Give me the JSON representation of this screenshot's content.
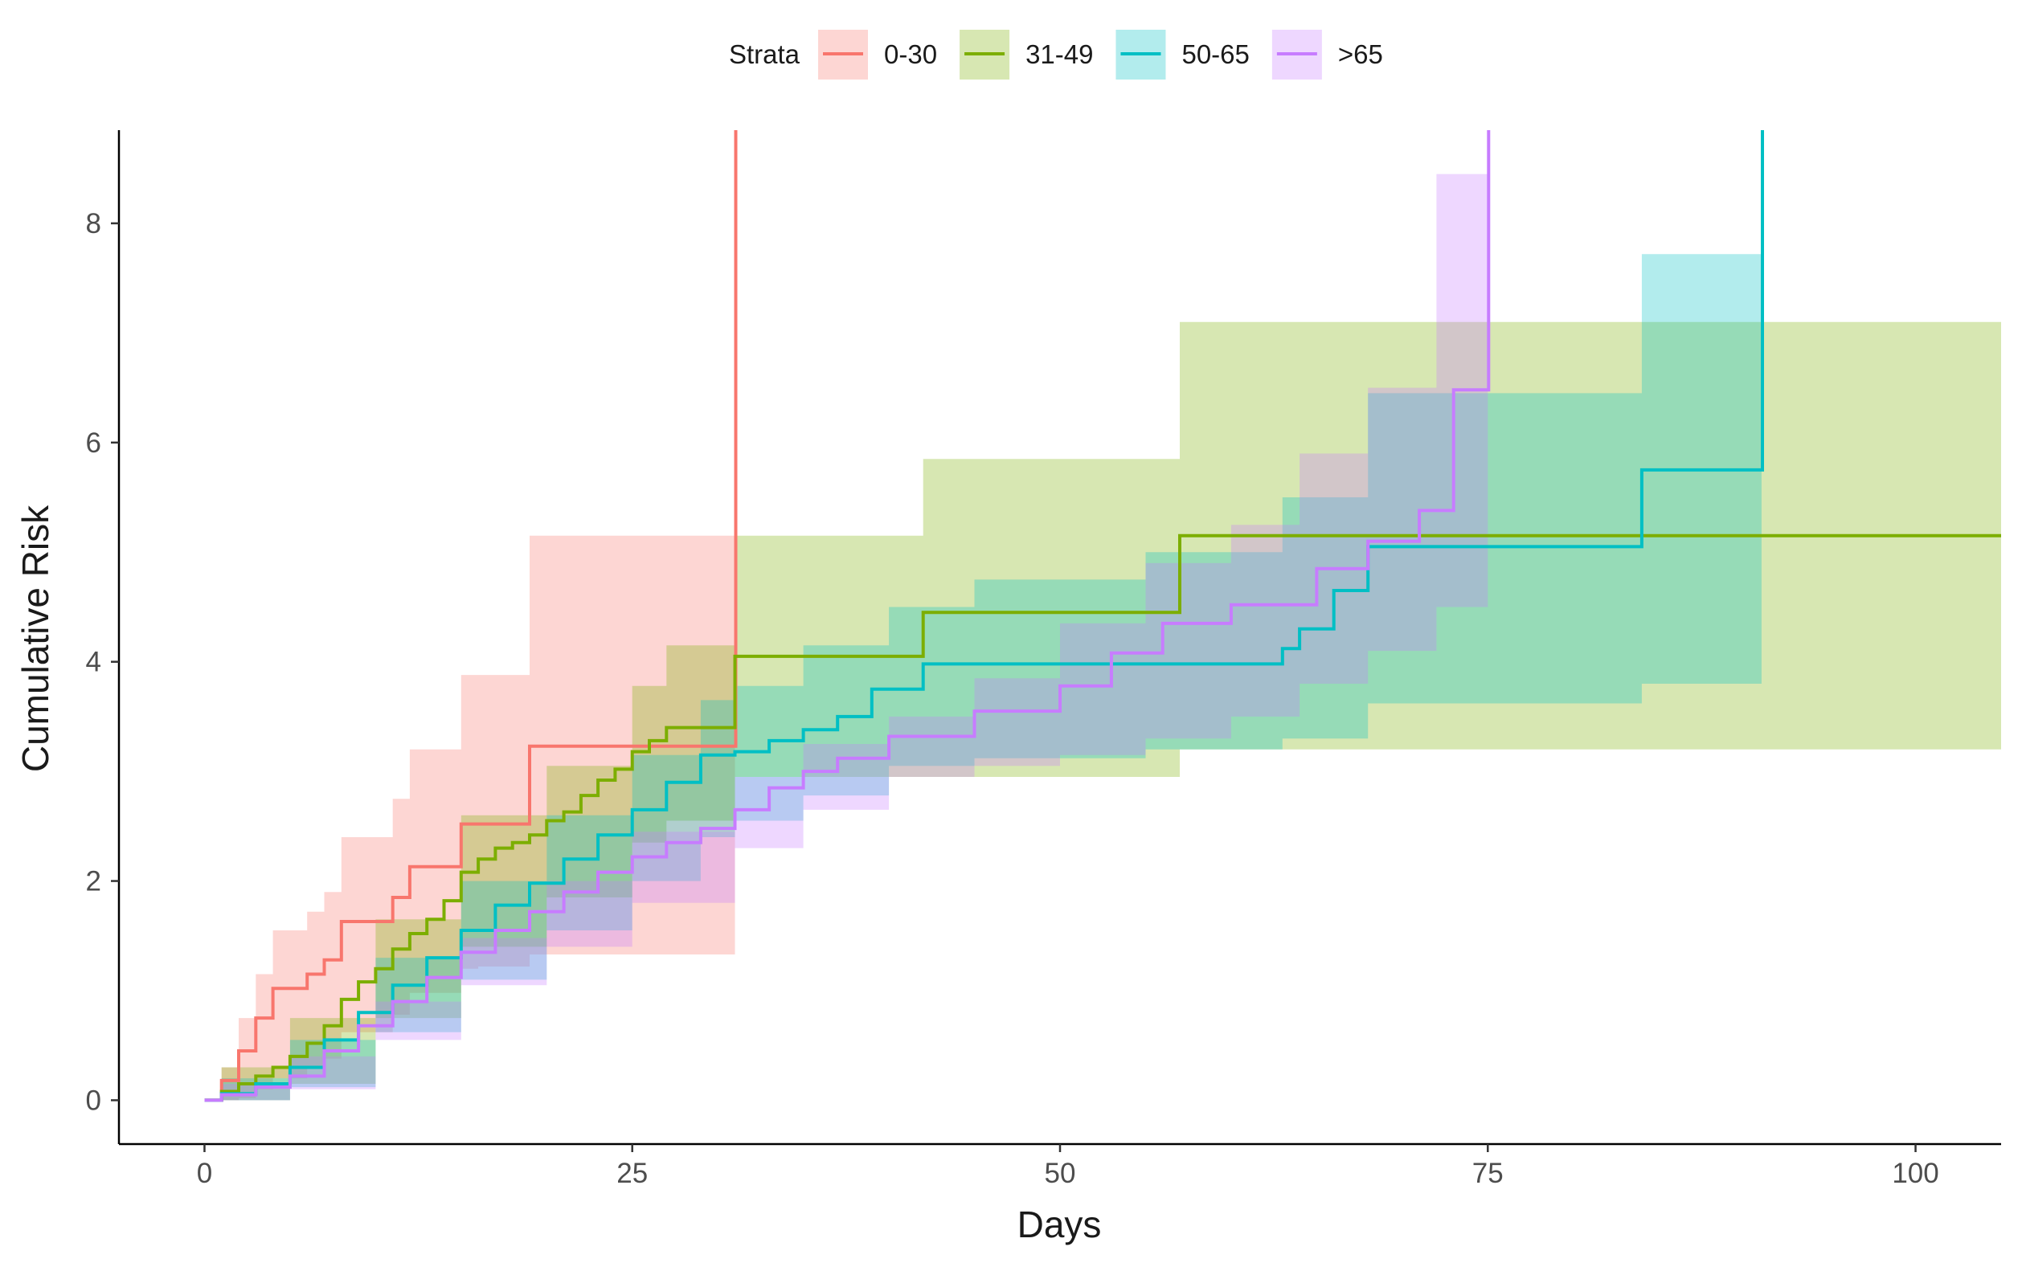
{
  "chart_data": {
    "type": "line",
    "subtype": "step-with-confidence-bands",
    "title": "",
    "xlabel": "Days",
    "ylabel": "Cumulative Risk",
    "xlim": [
      -5,
      105
    ],
    "ylim": [
      -0.4,
      8.85
    ],
    "x_ticks": [
      0,
      25,
      50,
      75,
      100
    ],
    "x_tick_labels": [
      "0",
      "25",
      "50",
      "75",
      "100"
    ],
    "y_ticks": [
      0,
      2,
      4,
      6,
      8
    ],
    "y_tick_labels": [
      "0",
      "2",
      "4",
      "6",
      "8"
    ],
    "grid": false,
    "legend": {
      "title": "Strata",
      "position": "top"
    },
    "series": [
      {
        "name": "0-30",
        "color": "#F8766D",
        "x": [
          0,
          1,
          2,
          3,
          4,
          6,
          7,
          8,
          11,
          12,
          15,
          16,
          19,
          20,
          31,
          31.05
        ],
        "y": [
          0,
          0.18,
          0.45,
          0.75,
          1.02,
          1.15,
          1.28,
          1.63,
          1.85,
          2.13,
          2.52,
          2.52,
          3.23,
          3.23,
          3.23,
          8.85
        ],
        "band_x": [
          1,
          2,
          3,
          4,
          6,
          7,
          8,
          11,
          12,
          15,
          16,
          19,
          20,
          31
        ],
        "band_lower": [
          0,
          0.02,
          0.1,
          0.2,
          0.3,
          0.38,
          0.62,
          0.78,
          0.98,
          1.2,
          1.22,
          1.33,
          1.33,
          1.33
        ],
        "band_upper": [
          0.3,
          0.75,
          1.15,
          1.55,
          1.72,
          1.9,
          2.4,
          2.75,
          3.2,
          3.88,
          3.88,
          5.15,
          5.15,
          5.15
        ]
      },
      {
        "name": "31-49",
        "color": "#7CAE00",
        "x": [
          0,
          1,
          2,
          3,
          4,
          5,
          6,
          7,
          8,
          9,
          10,
          11,
          12,
          13,
          14,
          15,
          16,
          17,
          18,
          19,
          20,
          21,
          22,
          23,
          24,
          25,
          26,
          27,
          31,
          42,
          57,
          105
        ],
        "y": [
          0,
          0.08,
          0.15,
          0.22,
          0.3,
          0.4,
          0.52,
          0.68,
          0.92,
          1.08,
          1.2,
          1.38,
          1.52,
          1.65,
          1.82,
          2.08,
          2.2,
          2.3,
          2.35,
          2.42,
          2.55,
          2.63,
          2.78,
          2.92,
          3.02,
          3.18,
          3.28,
          3.4,
          4.05,
          4.45,
          5.15,
          5.15
        ],
        "band_x": [
          1,
          5,
          10,
          15,
          20,
          25,
          27,
          31,
          42,
          57,
          105
        ],
        "band_lower": [
          0,
          0.15,
          0.75,
          1.4,
          1.85,
          2.35,
          2.55,
          2.95,
          2.95,
          3.2,
          3.2
        ],
        "band_upper": [
          0.3,
          0.75,
          1.65,
          2.6,
          3.05,
          3.78,
          4.15,
          5.15,
          5.85,
          7.1,
          7.1
        ]
      },
      {
        "name": "50-65",
        "color": "#00BFC4",
        "x": [
          0,
          1,
          3,
          5,
          7,
          9,
          11,
          13,
          15,
          17,
          19,
          21,
          23,
          25,
          27,
          29,
          31,
          33,
          35,
          37,
          39,
          42,
          45,
          50,
          55,
          60,
          63,
          64,
          66,
          68,
          71,
          84,
          91,
          91.05
        ],
        "y": [
          0,
          0.06,
          0.15,
          0.3,
          0.55,
          0.8,
          1.05,
          1.3,
          1.55,
          1.78,
          1.98,
          2.2,
          2.42,
          2.65,
          2.9,
          3.15,
          3.18,
          3.28,
          3.38,
          3.5,
          3.75,
          3.98,
          3.98,
          3.98,
          3.98,
          3.98,
          4.12,
          4.3,
          4.65,
          5.05,
          5.05,
          5.75,
          5.75,
          8.85
        ],
        "band_x": [
          1,
          5,
          10,
          15,
          20,
          25,
          29,
          31,
          35,
          40,
          45,
          55,
          63,
          68,
          71,
          84,
          91
        ],
        "band_lower": [
          0,
          0.12,
          0.62,
          1.1,
          1.55,
          2.0,
          2.4,
          2.55,
          2.78,
          3.05,
          3.12,
          3.2,
          3.3,
          3.62,
          3.62,
          3.8,
          3.8
        ],
        "band_upper": [
          0.2,
          0.55,
          1.3,
          2.0,
          2.6,
          3.15,
          3.65,
          3.78,
          4.15,
          4.5,
          4.75,
          5.0,
          5.5,
          6.45,
          6.45,
          7.72,
          7.72
        ]
      },
      {
        "name": ">65",
        "color": "#C77CFF",
        "x": [
          0,
          1,
          3,
          5,
          7,
          9,
          11,
          13,
          15,
          17,
          19,
          21,
          23,
          25,
          27,
          29,
          31,
          33,
          35,
          37,
          40,
          45,
          50,
          53,
          56,
          60,
          65,
          68,
          71,
          73,
          75,
          75.05
        ],
        "y": [
          0,
          0.05,
          0.12,
          0.22,
          0.45,
          0.68,
          0.9,
          1.12,
          1.35,
          1.55,
          1.72,
          1.9,
          2.08,
          2.22,
          2.35,
          2.48,
          2.65,
          2.85,
          3.0,
          3.12,
          3.32,
          3.55,
          3.78,
          4.08,
          4.35,
          4.52,
          4.85,
          5.1,
          5.38,
          6.48,
          6.48,
          8.85
        ],
        "band_x": [
          1,
          5,
          10,
          15,
          20,
          25,
          31,
          35,
          40,
          45,
          50,
          55,
          60,
          64,
          68,
          72,
          75
        ],
        "band_lower": [
          0,
          0.1,
          0.55,
          1.05,
          1.4,
          1.8,
          2.3,
          2.65,
          2.95,
          3.05,
          3.15,
          3.3,
          3.5,
          3.8,
          4.1,
          4.5,
          4.5
        ],
        "band_upper": [
          0.15,
          0.4,
          0.9,
          1.48,
          2.0,
          2.45,
          2.95,
          3.25,
          3.5,
          3.85,
          4.35,
          4.9,
          5.25,
          5.9,
          6.5,
          8.45,
          8.45
        ]
      }
    ]
  }
}
